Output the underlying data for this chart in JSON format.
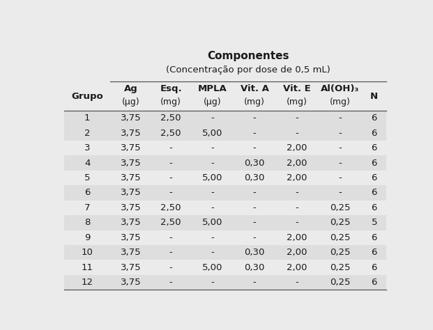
{
  "title_line1": "Componentes",
  "title_line2": "(Concentração por dose de 0,5 mL)",
  "col_header_line1": [
    "Grupo",
    "Ag",
    "Esq.",
    "MPLA",
    "Vit. A",
    "Vit. E",
    "Al(OH)₃",
    "N"
  ],
  "col_header_line2": [
    "",
    "(μg)",
    "(mg)",
    "(μg)",
    "(mg)",
    "(mg)",
    "(mg)",
    ""
  ],
  "rows": [
    [
      "1",
      "3,75",
      "2,50",
      "-",
      "-",
      "-",
      "-",
      "6"
    ],
    [
      "2",
      "3,75",
      "2,50",
      "5,00",
      "-",
      "-",
      "-",
      "6"
    ],
    [
      "3",
      "3,75",
      "-",
      "-",
      "-",
      "2,00",
      "-",
      "6"
    ],
    [
      "4",
      "3,75",
      "-",
      "-",
      "0,30",
      "2,00",
      "-",
      "6"
    ],
    [
      "5",
      "3,75",
      "-",
      "5,00",
      "0,30",
      "2,00",
      "-",
      "6"
    ],
    [
      "6",
      "3,75",
      "-",
      "-",
      "-",
      "-",
      "-",
      "6"
    ],
    [
      "7",
      "3,75",
      "2,50",
      "-",
      "-",
      "-",
      "0,25",
      "6"
    ],
    [
      "8",
      "3,75",
      "2,50",
      "5,00",
      "-",
      "-",
      "0,25",
      "5"
    ],
    [
      "9",
      "3,75",
      "-",
      "-",
      "-",
      "2,00",
      "0,25",
      "6"
    ],
    [
      "10",
      "3,75",
      "-",
      "-",
      "0,30",
      "2,00",
      "0,25",
      "6"
    ],
    [
      "11",
      "3,75",
      "-",
      "5,00",
      "0,30",
      "2,00",
      "0,25",
      "6"
    ],
    [
      "12",
      "3,75",
      "-",
      "-",
      "-",
      "-",
      "0,25",
      "6"
    ]
  ],
  "shaded_rows": [
    0,
    1,
    3,
    5,
    7,
    9,
    11
  ],
  "bg_color": "#ebebeb",
  "shaded_color": "#dedede",
  "text_color": "#1a1a1a",
  "col_widths_rel": [
    1.15,
    1.0,
    1.0,
    1.05,
    1.05,
    1.05,
    1.1,
    0.6
  ],
  "title_fontsize": 11,
  "subtitle_fontsize": 9.5,
  "header_fontsize": 9.5,
  "data_fontsize": 9.5
}
